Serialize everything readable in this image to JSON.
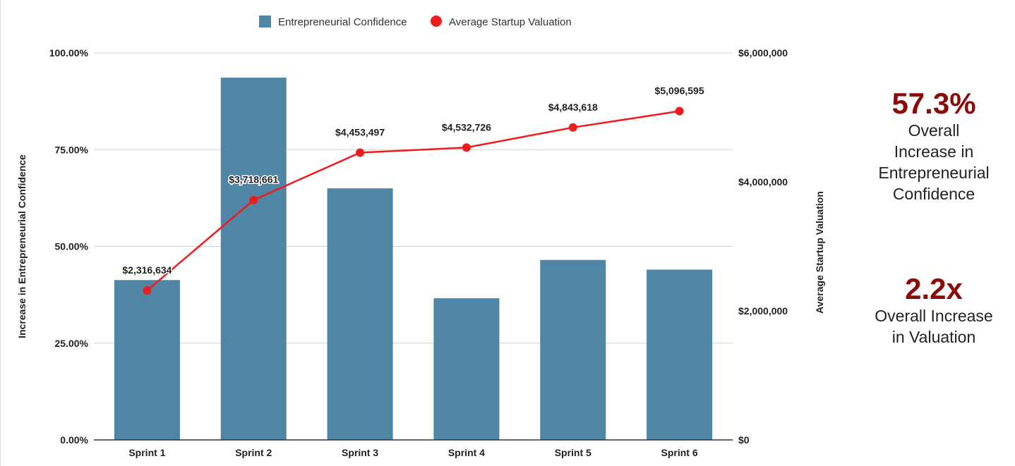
{
  "chart_data": {
    "type": "bar+line",
    "categories": [
      "Sprint 1",
      "Sprint 2",
      "Sprint 3",
      "Sprint 4",
      "Sprint 5",
      "Sprint 6"
    ],
    "series": [
      {
        "name": "Entrepreneurial Confidence",
        "kind": "bar",
        "axis": "left",
        "color": "#4f86a6",
        "values": [
          41.3,
          93.6,
          65.0,
          36.6,
          46.5,
          44.0
        ]
      },
      {
        "name": "Average Startup Valuation",
        "kind": "line",
        "axis": "right",
        "color": "#ee1c1c",
        "values": [
          2316634,
          3718661,
          4453497,
          4532726,
          4843618,
          5096595
        ],
        "labels": [
          "$2,316,634",
          "$3,718,661",
          "$4,453,497",
          "$4,532,726",
          "$4,843,618",
          "$5,096,595"
        ]
      }
    ],
    "left_axis": {
      "label": "Increase in Entrepreneurial Confidence",
      "range": [
        0,
        100
      ],
      "ticks": [
        0,
        25,
        50,
        75,
        100
      ],
      "tick_labels": [
        "0.00%",
        "25.00%",
        "50.00%",
        "75.00%",
        "100.00%"
      ]
    },
    "right_axis": {
      "label": "Average Startup Valuation",
      "range": [
        0,
        6000000
      ],
      "ticks": [
        0,
        2000000,
        4000000,
        6000000
      ],
      "tick_labels": [
        "$0",
        "$2,000,000",
        "$4,000,000",
        "$6,000,000"
      ]
    },
    "legend_position": "top-center",
    "grid": true
  },
  "stats": [
    {
      "value": "57.3%",
      "description": "Overall\nIncrease in\nEntrepreneurial\nConfidence"
    },
    {
      "value": "2.2x",
      "description": "Overall Increase\nin Valuation"
    }
  ]
}
